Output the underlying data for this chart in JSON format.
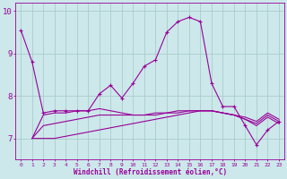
{
  "xlabel": "Windchill (Refroidissement éolien,°C)",
  "background_color": "#cce8ea",
  "line_color": "#990099",
  "grid_color": "#aacccc",
  "x": [
    0,
    1,
    2,
    3,
    4,
    5,
    6,
    7,
    8,
    9,
    10,
    11,
    12,
    13,
    14,
    15,
    16,
    17,
    18,
    19,
    20,
    21,
    22,
    23
  ],
  "series_main": [
    9.55,
    8.8,
    7.6,
    7.65,
    7.65,
    7.65,
    7.65,
    8.05,
    8.25,
    7.95,
    8.3,
    8.7,
    8.85,
    9.5,
    9.75,
    9.85,
    9.75,
    8.3,
    7.75,
    7.75,
    7.3,
    6.85,
    7.2,
    7.4
  ],
  "series_a": [
    null,
    7.0,
    7.55,
    7.6,
    7.6,
    7.65,
    7.65,
    7.7,
    7.65,
    7.6,
    7.55,
    7.55,
    7.55,
    7.6,
    7.6,
    7.65,
    7.65,
    7.65,
    7.6,
    7.55,
    7.5,
    7.4,
    7.6,
    7.45
  ],
  "series_b": [
    null,
    7.0,
    7.3,
    7.35,
    7.4,
    7.45,
    7.5,
    7.55,
    7.55,
    7.55,
    7.55,
    7.55,
    7.6,
    7.6,
    7.65,
    7.65,
    7.65,
    7.65,
    7.6,
    7.55,
    7.45,
    7.35,
    7.55,
    7.4
  ],
  "series_c": [
    null,
    7.0,
    7.0,
    7.0,
    7.05,
    7.1,
    7.15,
    7.2,
    7.25,
    7.3,
    7.35,
    7.4,
    7.45,
    7.5,
    7.55,
    7.6,
    7.65,
    7.65,
    7.6,
    7.55,
    7.45,
    7.3,
    7.5,
    7.35
  ],
  "ylim": [
    6.5,
    10.2
  ],
  "yticks": [
    7,
    8,
    9,
    10
  ],
  "xticks": [
    0,
    1,
    2,
    3,
    4,
    5,
    6,
    7,
    8,
    9,
    10,
    11,
    12,
    13,
    14,
    15,
    16,
    17,
    18,
    19,
    20,
    21,
    22,
    23
  ]
}
